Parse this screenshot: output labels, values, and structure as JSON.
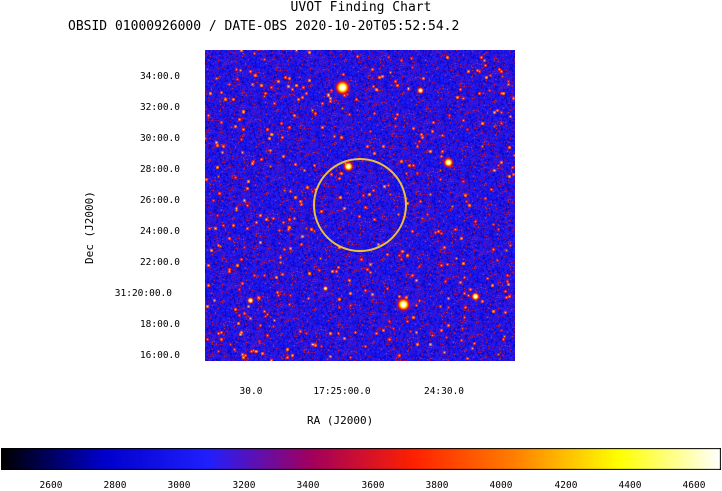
{
  "header": {
    "title": "UVOT Finding Chart",
    "subtitle": "OBSID 01000926000 / DATE-OBS 2020-10-20T05:52:54.2"
  },
  "axes": {
    "xlabel": "RA (J2000)",
    "ylabel": "Dec (J2000)",
    "x_ticks": [
      "30.0",
      "17:25:00.0",
      "24:30.0"
    ],
    "y_ticks": [
      "34:00.0",
      "32:00.0",
      "30:00.0",
      "28:00.0",
      "26:00.0",
      "24:00.0",
      "22:00.0",
      "31:20:00.0",
      "18:00.0",
      "16:00.0"
    ]
  },
  "colorbar": {
    "ticks": [
      "2600",
      "2800",
      "3000",
      "3200",
      "3400",
      "3600",
      "3800",
      "4000",
      "4200",
      "4400",
      "4600"
    ],
    "colors": [
      "#000000",
      "#0000cc",
      "#2020ff",
      "#a00060",
      "#ff2000",
      "#ff8000",
      "#ffff00",
      "#ffffff"
    ]
  },
  "overlay": {
    "circle_color": "#e8c040"
  }
}
